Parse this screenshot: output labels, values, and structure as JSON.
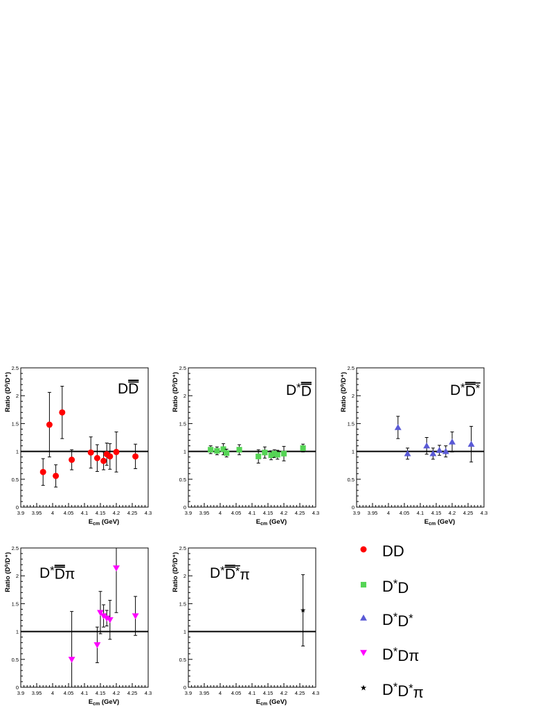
{
  "chart_data": [
    {
      "type": "scatter",
      "title": "DD",
      "title_bars": [
        1
      ],
      "xlabel": "E",
      "xlabel_sub": "cm",
      "xlabel_unit": "(GeV)",
      "ylabel": "Ratio (D⁰/D⁺)",
      "xlim": [
        3.9,
        4.3
      ],
      "ylim": [
        0,
        2.5
      ],
      "reference_line": 1,
      "marker": "circle",
      "color": "#ff0000",
      "points": [
        {
          "x": 3.97,
          "y": 0.63,
          "err": 0.24
        },
        {
          "x": 3.99,
          "y": 1.48,
          "err": 0.58
        },
        {
          "x": 4.01,
          "y": 0.56,
          "err": 0.2
        },
        {
          "x": 4.03,
          "y": 1.7,
          "err": 0.47
        },
        {
          "x": 4.06,
          "y": 0.85,
          "err": 0.18
        },
        {
          "x": 4.12,
          "y": 0.98,
          "err": 0.28
        },
        {
          "x": 4.14,
          "y": 0.88,
          "err": 0.24
        },
        {
          "x": 4.16,
          "y": 0.83,
          "err": 0.16
        },
        {
          "x": 4.17,
          "y": 0.95,
          "err": 0.2
        },
        {
          "x": 4.18,
          "y": 0.91,
          "err": 0.23
        },
        {
          "x": 4.2,
          "y": 0.99,
          "err": 0.36
        },
        {
          "x": 4.26,
          "y": 0.91,
          "err": 0.22
        }
      ]
    },
    {
      "type": "scatter",
      "title": "D*D",
      "title_bars": [
        2
      ],
      "xlabel": "E",
      "xlabel_sub": "cm",
      "xlabel_unit": "(GeV)",
      "ylabel": "Ratio (D⁰/D⁺)",
      "xlim": [
        3.9,
        4.3
      ],
      "ylim": [
        0,
        2.5
      ],
      "reference_line": 1,
      "marker": "square",
      "color": "#55d455",
      "points": [
        {
          "x": 3.97,
          "y": 1.03,
          "err": 0.07
        },
        {
          "x": 3.99,
          "y": 1.01,
          "err": 0.07
        },
        {
          "x": 4.01,
          "y": 1.04,
          "err": 0.1
        },
        {
          "x": 4.02,
          "y": 0.97,
          "err": 0.07
        },
        {
          "x": 4.06,
          "y": 1.03,
          "err": 0.09
        },
        {
          "x": 4.12,
          "y": 0.91,
          "err": 0.12
        },
        {
          "x": 4.14,
          "y": 0.98,
          "err": 0.1
        },
        {
          "x": 4.16,
          "y": 0.93,
          "err": 0.08
        },
        {
          "x": 4.17,
          "y": 0.96,
          "err": 0.07
        },
        {
          "x": 4.18,
          "y": 0.94,
          "err": 0.08
        },
        {
          "x": 4.2,
          "y": 0.96,
          "err": 0.13
        },
        {
          "x": 4.26,
          "y": 1.06,
          "err": 0.07
        }
      ]
    },
    {
      "type": "scatter",
      "title": "D*D*",
      "title_bars": [
        2,
        3
      ],
      "xlabel": "E",
      "xlabel_sub": "cm",
      "xlabel_unit": "(GeV)",
      "ylabel": "Ratio (D⁰/D⁺)",
      "xlim": [
        3.9,
        4.3
      ],
      "ylim": [
        0,
        2.5
      ],
      "reference_line": 1,
      "marker": "triangle-up",
      "color": "#5a5ad6",
      "points": [
        {
          "x": 4.03,
          "y": 1.43,
          "err": 0.2
        },
        {
          "x": 4.06,
          "y": 0.96,
          "err": 0.1
        },
        {
          "x": 4.12,
          "y": 1.1,
          "err": 0.15
        },
        {
          "x": 4.14,
          "y": 0.96,
          "err": 0.1
        },
        {
          "x": 4.16,
          "y": 1.02,
          "err": 0.09
        },
        {
          "x": 4.18,
          "y": 1.0,
          "err": 0.1
        },
        {
          "x": 4.2,
          "y": 1.17,
          "err": 0.18
        },
        {
          "x": 4.26,
          "y": 1.13,
          "err": 0.32
        }
      ]
    },
    {
      "type": "scatter",
      "title": "D*Dπ",
      "title_bars": [
        2
      ],
      "xlabel": "E",
      "xlabel_sub": "cm",
      "xlabel_unit": "(GeV)",
      "ylabel": "Ratio (D⁰/D⁺)",
      "xlim": [
        3.9,
        4.3
      ],
      "ylim": [
        0,
        2.5
      ],
      "reference_line": 1,
      "marker": "triangle-down",
      "color": "#ff00ff",
      "points": [
        {
          "x": 4.06,
          "y": 0.5,
          "err": 0.86
        },
        {
          "x": 4.14,
          "y": 0.76,
          "err": 0.32
        },
        {
          "x": 4.15,
          "y": 1.34,
          "err": 0.38
        },
        {
          "x": 4.16,
          "y": 1.28,
          "err": 0.2
        },
        {
          "x": 4.17,
          "y": 1.24,
          "err": 0.14
        },
        {
          "x": 4.18,
          "y": 1.21,
          "err": 0.35
        },
        {
          "x": 4.2,
          "y": 2.14,
          "err": 0.8
        },
        {
          "x": 4.26,
          "y": 1.28,
          "err": 0.35
        }
      ]
    },
    {
      "type": "scatter",
      "title": "D*D*π",
      "title_bars": [
        2,
        3
      ],
      "xlabel": "E",
      "xlabel_sub": "cm",
      "xlabel_unit": "(GeV)",
      "ylabel": "Ratio (D⁰/D⁺)",
      "xlim": [
        3.9,
        4.3
      ],
      "ylim": [
        0,
        2.5
      ],
      "reference_line": 1,
      "marker": "star",
      "color": "#000000",
      "points": [
        {
          "x": 4.26,
          "y": 1.38,
          "err": 0.64
        }
      ]
    }
  ],
  "x_ticks": [
    {
      "v": 3.9,
      "label": "3.9"
    },
    {
      "v": 3.95,
      "label": "3.95"
    },
    {
      "v": 4.0,
      "label": "4"
    },
    {
      "v": 4.05,
      "label": "4.05"
    },
    {
      "v": 4.1,
      "label": "4.1"
    },
    {
      "v": 4.15,
      "label": "4.15"
    },
    {
      "v": 4.2,
      "label": "4.2"
    },
    {
      "v": 4.25,
      "label": "4.25"
    },
    {
      "v": 4.3,
      "label": "4.3"
    }
  ],
  "y_ticks": [
    {
      "v": 0,
      "label": "0"
    },
    {
      "v": 0.5,
      "label": "0.5"
    },
    {
      "v": 1,
      "label": "1"
    },
    {
      "v": 1.5,
      "label": "1.5"
    },
    {
      "v": 2,
      "label": "2"
    },
    {
      "v": 2.5,
      "label": "2.5"
    }
  ],
  "legend": [
    {
      "label": "DD",
      "marker": "circle",
      "color": "#ff0000"
    },
    {
      "label": "D*D",
      "marker": "square",
      "color": "#55d455"
    },
    {
      "label": "D*D*",
      "marker": "triangle-up",
      "color": "#5a5ad6"
    },
    {
      "label": "D*Dπ",
      "marker": "triangle-down",
      "color": "#ff00ff"
    },
    {
      "label": "D*D*π",
      "marker": "star",
      "color": "#000000"
    }
  ]
}
